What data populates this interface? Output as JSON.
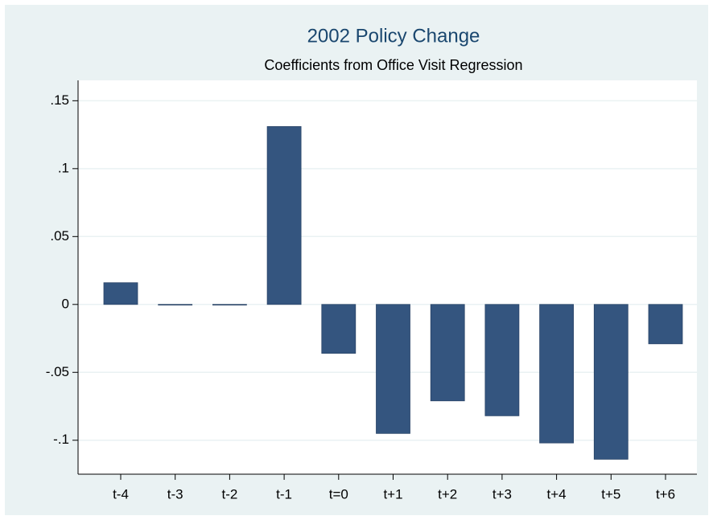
{
  "chart_data": {
    "type": "bar",
    "title": "2002 Policy Change",
    "subtitle": "Coefficients from Office Visit Regression",
    "categories": [
      "t-4",
      "t-3",
      "t-2",
      "t-1",
      "t=0",
      "t+1",
      "t+2",
      "t+3",
      "t+4",
      "t+5",
      "t+6"
    ],
    "values": [
      0.016,
      0,
      0,
      0.131,
      -0.036,
      -0.095,
      -0.071,
      -0.082,
      -0.102,
      -0.114,
      -0.029
    ],
    "color": "#34557f",
    "ylim": [
      -0.125,
      0.165
    ],
    "yticks": [
      {
        "value": 0.15,
        "label": ".15"
      },
      {
        "value": 0.1,
        "label": ".1"
      },
      {
        "value": 0.05,
        "label": ".05"
      },
      0,
      {
        "value": -0.05,
        "label": "-.05"
      },
      {
        "value": -0.1,
        "label": "-.1"
      }
    ],
    "grid": true
  }
}
